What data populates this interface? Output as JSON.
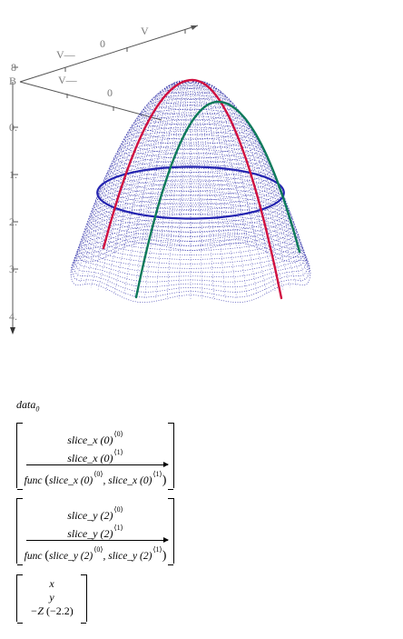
{
  "plot": {
    "axis_ticks": {
      "top_zero": "0",
      "top_far": "V",
      "top_mid": "V—",
      "left_b": "B",
      "left_8": "8",
      "mid_v": "V—",
      "mid_zero": "0",
      "z_0": "0.",
      "z_1": "1.",
      "z_2": "2.",
      "z_3": "3.",
      "z_4": "4."
    },
    "colors": {
      "mesh": "#1a1aa0",
      "slice_x": "#d01040",
      "slice_y": "#0d7a5a",
      "ring": "#2424b0",
      "axis": "#555555"
    }
  },
  "worksheet": {
    "data_label": "data",
    "data_subscript": "0",
    "block1": {
      "row1": "slice_x (0)",
      "row1_sup": "⟨0⟩",
      "row2": "slice_x (0)",
      "row2_sup": "⟨1⟩",
      "row3_func": "func",
      "row3_arg1": "slice_x (0)",
      "row3_sup1": "⟨0⟩",
      "row3_arg2": ", slice_x (0)",
      "row3_sup2": "⟨1⟩"
    },
    "block2": {
      "row1": "slice_y (2)",
      "row1_sup": "⟨0⟩",
      "row2": "slice_y (2)",
      "row2_sup": "⟨1⟩",
      "row3_func": "func",
      "row3_arg1": "slice_y (2)",
      "row3_sup1": "⟨0⟩",
      "row3_arg2": ", slice_y (2)",
      "row3_sup2": "⟨1⟩"
    },
    "block3": {
      "row1": "x",
      "row2": "y",
      "row3_prefix": "−Z",
      "row3_arg": "(−2.2)"
    }
  }
}
